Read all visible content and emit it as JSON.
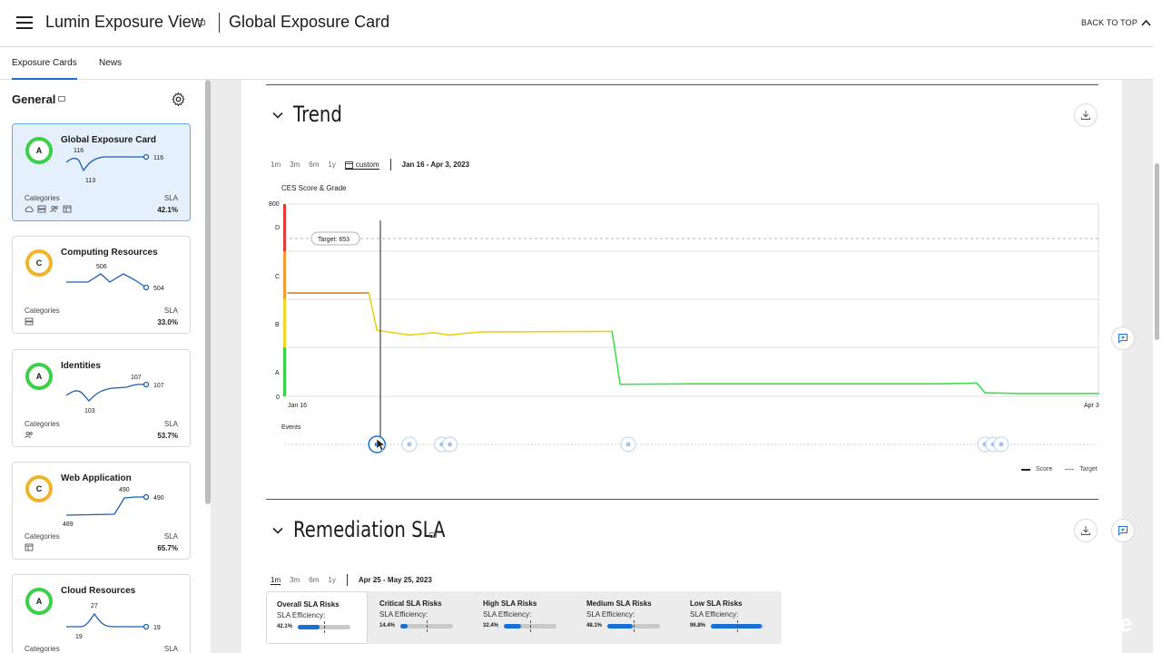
{
  "header": {
    "app_title": "Lumin Exposure View",
    "page_title": "Global Exposure Card",
    "back_to_top": "BACK TO TOP"
  },
  "tabs": [
    {
      "label": "Exposure Cards",
      "active": true
    },
    {
      "label": "News",
      "active": false
    }
  ],
  "sidebar": {
    "title": "General",
    "cards": [
      {
        "name": "Global Exposure Card",
        "grade": "A",
        "spark_labels": [
          "116",
          "113",
          "116"
        ],
        "categories_label": "Categories",
        "sla_label": "SLA",
        "sla": "42.1%",
        "icons": [
          "cloud-icon",
          "server-icon",
          "users-icon",
          "app-window-icon"
        ],
        "selected": true
      },
      {
        "name": "Computing Resources",
        "grade": "C",
        "spark_labels": [
          "506",
          "504"
        ],
        "categories_label": "Categories",
        "sla_label": "SLA",
        "sla": "33.0%",
        "icons": [
          "server-icon"
        ],
        "selected": false
      },
      {
        "name": "Identities",
        "grade": "A",
        "spark_labels": [
          "107",
          "103",
          "107"
        ],
        "categories_label": "Categories",
        "sla_label": "SLA",
        "sla": "53.7%",
        "icons": [
          "users-icon"
        ],
        "selected": false
      },
      {
        "name": "Web Application",
        "grade": "C",
        "spark_labels": [
          "490",
          "489",
          "490"
        ],
        "categories_label": "Categories",
        "sla_label": "SLA",
        "sla": "65.7%",
        "icons": [
          "app-window-icon"
        ],
        "selected": false
      },
      {
        "name": "Cloud Resources",
        "grade": "A",
        "spark_labels": [
          "27",
          "19",
          "19"
        ],
        "categories_label": "Categories",
        "sla_label": "SLA",
        "sla": "",
        "icons": [],
        "selected": false
      }
    ]
  },
  "trend": {
    "title": "Trend",
    "ranges": [
      "1m",
      "3m",
      "6m",
      "1y"
    ],
    "custom_label": "custom",
    "date_range": "Jan 16 - Apr 3, 2023",
    "chart_title": "CES Score & Grade",
    "events_label": "Events",
    "legend_score": "Score",
    "legend_target": "Target"
  },
  "chart_data": {
    "type": "line",
    "title": "CES Score & Grade",
    "y_axis_top_label": "800",
    "y_axis_bottom_label": "0",
    "ylim": [
      0,
      800
    ],
    "grade_labels": [
      "D",
      "C",
      "B",
      "A"
    ],
    "x_tick_labels": [
      "Jan 16",
      "Apr 3"
    ],
    "target_label": "Target: 653",
    "target": 653,
    "series": [
      {
        "name": "Score",
        "x": [
          0,
          0.1,
          0.11,
          0.15,
          0.18,
          0.2,
          0.22,
          0.24,
          0.4,
          0.41,
          0.5,
          0.6,
          0.7,
          0.8,
          0.85,
          0.86,
          0.9,
          1.0
        ],
        "y": [
          430,
          430,
          275,
          255,
          265,
          255,
          263,
          268,
          270,
          50,
          52,
          52,
          52,
          52,
          55,
          15,
          12,
          12
        ]
      }
    ],
    "events": [
      0.11,
      0.15,
      0.19,
      0.2,
      0.42,
      0.86,
      0.87,
      0.88
    ]
  },
  "remediation": {
    "title": "Remediation SLA",
    "ranges": [
      "1m",
      "3m",
      "6m",
      "1y"
    ],
    "date_range": "Apr 25 - May 25, 2023",
    "tiles": [
      {
        "title": "Overall SLA Risks",
        "eff_label": "SLA Efficiency:",
        "value": "42.1%",
        "fill": 0.421
      },
      {
        "title": "Critical SLA Risks",
        "eff_label": "SLA Efficiency:",
        "value": "14.4%",
        "fill": 0.144
      },
      {
        "title": "High SLA Risks",
        "eff_label": "SLA Efficiency:",
        "value": "32.4%",
        "fill": 0.324
      },
      {
        "title": "Medium SLA Risks",
        "eff_label": "SLA Efficiency:",
        "value": "48.1%",
        "fill": 0.481
      },
      {
        "title": "Low SLA Risks",
        "eff_label": "SLA Efficiency:",
        "value": "96.8%",
        "fill": 0.968
      }
    ]
  },
  "colors": {
    "accent": "#1670d8",
    "grade_a": "#3ccf48",
    "grade_c": "#f0b429",
    "score_orange": "#d9822b",
    "score_yellow": "#e7d31b",
    "score_green": "#3fe04a"
  }
}
